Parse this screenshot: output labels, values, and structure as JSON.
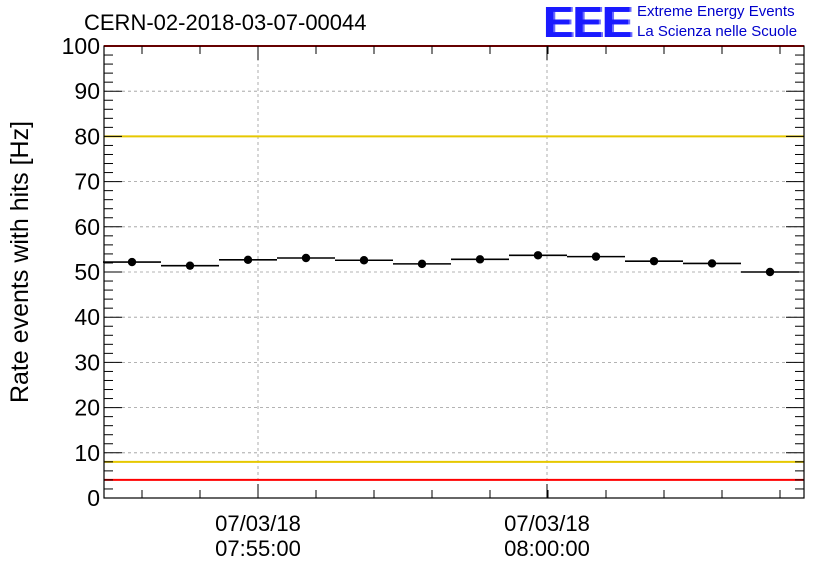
{
  "title": "CERN-02-2018-03-07-00044",
  "logo": {
    "mark": "EEE",
    "line1": "Extreme Energy Events",
    "line2": "La Scienza nelle Scuole"
  },
  "colors": {
    "limit_red": "#ff0000",
    "limit_yellow": "#e6c800",
    "grid": "#9a9a9a",
    "logo_blue": "#1a1aff"
  },
  "chart_data": {
    "type": "scatter",
    "title": "CERN-02-2018-03-07-00044",
    "xlabel": "",
    "ylabel": "Rate events with hits [Hz]",
    "ylim": [
      0,
      100
    ],
    "yticks": [
      0,
      10,
      20,
      30,
      40,
      50,
      60,
      70,
      80,
      90,
      100
    ],
    "x_major_ticks": [
      {
        "date": "07/03/18",
        "time": "07:55:00"
      },
      {
        "date": "07/03/18",
        "time": "08:00:00"
      }
    ],
    "grid": true,
    "series": [
      {
        "values": [
          52.2,
          51.4,
          52.7,
          53.1,
          52.6,
          51.8,
          52.8,
          53.7,
          53.4,
          52.4,
          51.9,
          50.0
        ]
      }
    ],
    "reference_lines": [
      {
        "y": 80,
        "color": "yellow"
      },
      {
        "y": 8,
        "color": "yellow"
      },
      {
        "y": 100,
        "color": "red"
      },
      {
        "y": 4,
        "color": "red"
      }
    ]
  }
}
